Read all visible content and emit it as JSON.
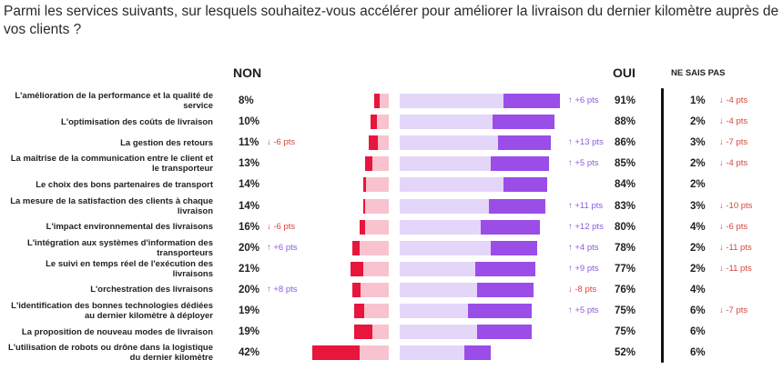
{
  "question": "Parmi les services suivants, sur lesquels souhaitez-vous accélérer pour améliorer la livraison du dernier kilomètre auprès de vos clients ?",
  "headers": {
    "non": "NON",
    "oui": "OUI",
    "nsp": "NE SAIS PAS"
  },
  "colors": {
    "non_dark": "#e8153d",
    "non_light": "#f8c3ce",
    "oui_light": "#e4d6f8",
    "oui_dark": "#9b4de8",
    "delta_up": "#8a5cd9",
    "delta_down": "#d9443c"
  },
  "chart_data": {
    "type": "bar",
    "orientation": "horizontal-diverging",
    "categories": [
      "L'amélioration de la performance et la qualité de service",
      "L'optimisation des coûts de livraison",
      "La gestion des retours",
      "La maîtrise de la communication entre le client et le transporteur",
      "Le choix des bons partenaires de transport",
      "La mesure de la satisfaction des clients à chaque livraison",
      "L'impact environnemental des livraisons",
      "L'intégration aux systèmes d'information des transporteurs",
      "Le suivi en temps réel de l'exécution des livraisons",
      "L'orchestration des livraisons",
      "L'identification des bonnes technologies dédiées au dernier kilomètre à déployer",
      "La proposition de nouveau modes de livraison",
      "L'utilisation de robots ou drône dans la logistique du dernier kilomètre"
    ],
    "series": [
      {
        "name": "NON",
        "labels": [
          "8%",
          "10%",
          "11%",
          "13%",
          "14%",
          "14%",
          "16%",
          "20%",
          "21%",
          "20%",
          "19%",
          "19%",
          "42%"
        ],
        "values": [
          8,
          10,
          11,
          13,
          14,
          14,
          16,
          20,
          21,
          20,
          19,
          19,
          42
        ],
        "dark_values": [
          3,
          3.5,
          5,
          4,
          1.5,
          1,
          3,
          4,
          7,
          4.5,
          5.5,
          10,
          26
        ]
      },
      {
        "name": "OUI",
        "labels": [
          "91%",
          "88%",
          "86%",
          "85%",
          "84%",
          "83%",
          "80%",
          "78%",
          "77%",
          "76%",
          "75%",
          "75%",
          "52%"
        ],
        "values": [
          91,
          88,
          86,
          85,
          84,
          83,
          80,
          78,
          77,
          76,
          75,
          75,
          52
        ],
        "dark_values": [
          32,
          35,
          30,
          33,
          25,
          32,
          34,
          26,
          34,
          32,
          36,
          31,
          15
        ]
      },
      {
        "name": "NE SAIS PAS",
        "labels": [
          "1%",
          "2%",
          "3%",
          "2%",
          "2%",
          "3%",
          "4%",
          "2%",
          "2%",
          "4%",
          "6%",
          "6%",
          "6%"
        ],
        "values": [
          1,
          2,
          3,
          2,
          2,
          3,
          4,
          2,
          2,
          4,
          6,
          6,
          6
        ]
      }
    ],
    "deltas": {
      "non": [
        "",
        "",
        "↓ -6 pts",
        "",
        "",
        "",
        "↓ -6 pts",
        "↑ +6 pts",
        "",
        "↑ +8 pts",
        "",
        "",
        ""
      ],
      "oui": [
        "↑ +6 pts",
        "",
        "↑ +13 pts",
        "↑ +5 pts",
        "",
        "↑ +11 pts",
        "↑ +12 pts",
        "↑ +4 pts",
        "↑ +9 pts",
        "↓ -8 pts",
        "↑ +5 pts",
        "",
        ""
      ],
      "nsp": [
        "↓ -4 pts",
        "↓ -4 pts",
        "↓ -7 pts",
        "↓ -4 pts",
        "",
        "↓ -10 pts",
        "↓ -6 pts",
        "↓ -11 pts",
        "↓ -11 pts",
        "",
        "↓ -7 pts",
        "",
        ""
      ]
    }
  }
}
